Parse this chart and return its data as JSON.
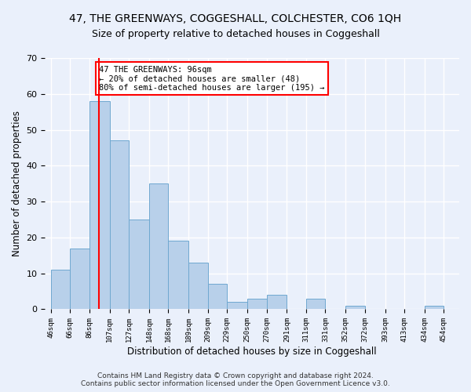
{
  "title": "47, THE GREENWAYS, COGGESHALL, COLCHESTER, CO6 1QH",
  "subtitle": "Size of property relative to detached houses in Coggeshall",
  "xlabel": "Distribution of detached houses by size in Coggeshall",
  "ylabel": "Number of detached properties",
  "bar_left_edges": [
    46,
    66,
    86,
    107,
    127,
    148,
    168,
    189,
    209,
    229,
    250,
    270,
    291,
    311,
    331,
    352,
    372,
    393,
    413,
    434
  ],
  "bar_right_edges": [
    66,
    86,
    107,
    127,
    148,
    168,
    189,
    209,
    229,
    250,
    270,
    291,
    311,
    331,
    352,
    372,
    393,
    413,
    434,
    454
  ],
  "bar_heights": [
    11,
    17,
    58,
    47,
    25,
    35,
    19,
    13,
    7,
    2,
    3,
    4,
    0,
    3,
    0,
    1,
    0,
    0,
    0,
    1
  ],
  "bar_color": "#b8d0ea",
  "bar_edgecolor": "#6fa8d0",
  "tick_labels": [
    "46sqm",
    "66sqm",
    "86sqm",
    "107sqm",
    "127sqm",
    "148sqm",
    "168sqm",
    "189sqm",
    "209sqm",
    "229sqm",
    "250sqm",
    "270sqm",
    "291sqm",
    "311sqm",
    "331sqm",
    "352sqm",
    "372sqm",
    "393sqm",
    "413sqm",
    "434sqm",
    "454sqm"
  ],
  "tick_positions": [
    46,
    66,
    86,
    107,
    127,
    148,
    168,
    189,
    209,
    229,
    250,
    270,
    291,
    311,
    331,
    352,
    372,
    393,
    413,
    434,
    454
  ],
  "ylim": [
    0,
    70
  ],
  "xlim": [
    40,
    470
  ],
  "vline_x": 96,
  "vline_color": "red",
  "annotation_text": "47 THE GREENWAYS: 96sqm\n← 20% of detached houses are smaller (48)\n80% of semi-detached houses are larger (195) →",
  "annotation_box_facecolor": "white",
  "annotation_box_edgecolor": "red",
  "footer_line1": "Contains HM Land Registry data © Crown copyright and database right 2024.",
  "footer_line2": "Contains public sector information licensed under the Open Government Licence v3.0.",
  "background_color": "#eaf0fb",
  "plot_background_color": "#eaf0fb",
  "grid_color": "white",
  "title_fontsize": 10,
  "subtitle_fontsize": 9,
  "ylabel_fontsize": 8.5,
  "xlabel_fontsize": 8.5,
  "footer_fontsize": 6.5
}
